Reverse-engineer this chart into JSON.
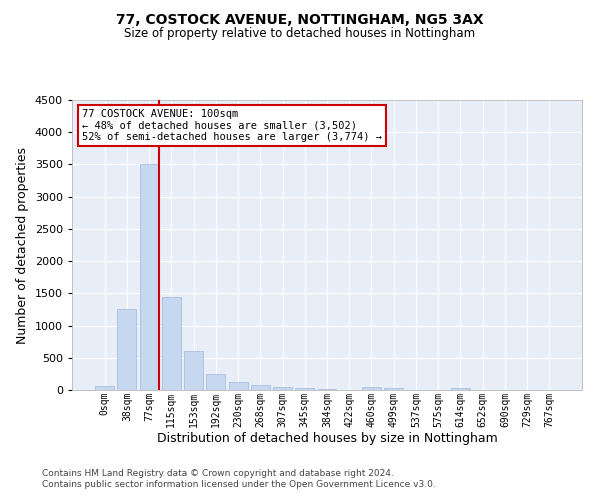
{
  "title1": "77, COSTOCK AVENUE, NOTTINGHAM, NG5 3AX",
  "title2": "Size of property relative to detached houses in Nottingham",
  "xlabel": "Distribution of detached houses by size in Nottingham",
  "ylabel": "Number of detached properties",
  "bar_color": "#c5d8f0",
  "bar_edge_color": "#a0b8d8",
  "background_color": "#e8eef8",
  "grid_color": "#ffffff",
  "vline_color": "#cc0000",
  "annotation_text": "77 COSTOCK AVENUE: 100sqm\n← 48% of detached houses are smaller (3,502)\n52% of semi-detached houses are larger (3,774) →",
  "annotation_box_color": "#ffffff",
  "annotation_box_edge": "#cc0000",
  "bins": [
    "0sqm",
    "38sqm",
    "77sqm",
    "115sqm",
    "153sqm",
    "192sqm",
    "230sqm",
    "268sqm",
    "307sqm",
    "345sqm",
    "384sqm",
    "422sqm",
    "460sqm",
    "499sqm",
    "537sqm",
    "575sqm",
    "614sqm",
    "652sqm",
    "690sqm",
    "729sqm",
    "767sqm"
  ],
  "values": [
    55,
    1250,
    3500,
    1450,
    600,
    250,
    130,
    80,
    50,
    30,
    10,
    5,
    50,
    30,
    0,
    0,
    30,
    0,
    0,
    0,
    0
  ],
  "ylim": [
    0,
    4500
  ],
  "yticks": [
    0,
    500,
    1000,
    1500,
    2000,
    2500,
    3000,
    3500,
    4000,
    4500
  ],
  "footer1": "Contains HM Land Registry data © Crown copyright and database right 2024.",
  "footer2": "Contains public sector information licensed under the Open Government Licence v3.0."
}
